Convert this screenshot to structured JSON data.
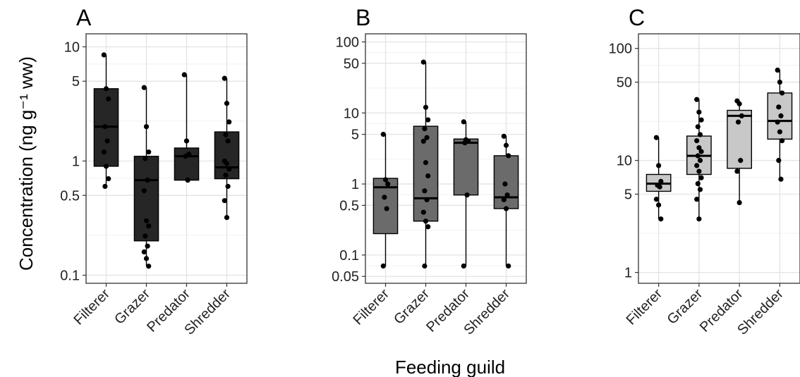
{
  "figure": {
    "ylabel": "Concentration (ng g⁻¹ ww)",
    "xlabel": "Feeding guild"
  },
  "chart_data": [
    {
      "type": "box",
      "panel": "A",
      "categories": [
        "Filterer",
        "Grazer",
        "Predator",
        "Shredder"
      ],
      "yticks": [
        0.1,
        0.5,
        1,
        5,
        10
      ],
      "yticklabels": [
        "0.1",
        "0.5",
        "1",
        "5",
        "10"
      ],
      "ylim": [
        0.085,
        13
      ],
      "fill": "#262626",
      "boxes": [
        {
          "category": "Filterer",
          "whisker_low": 0.6,
          "q1": 0.9,
          "median": 2.0,
          "q3": 4.3,
          "whisker_high": 8.5,
          "points": [
            8.5,
            4.3,
            3.5,
            2.0,
            1.5,
            1.2,
            0.9,
            0.7,
            0.6
          ]
        },
        {
          "category": "Grazer",
          "whisker_low": 0.12,
          "q1": 0.2,
          "median": 0.68,
          "q3": 1.1,
          "whisker_high": 4.4,
          "points": [
            4.4,
            2.0,
            1.2,
            1.05,
            0.68,
            0.55,
            0.3,
            0.27,
            0.22,
            0.18,
            0.16,
            0.14,
            0.12
          ]
        },
        {
          "category": "Predator",
          "whisker_low": 0.68,
          "q1": 0.68,
          "median": 1.1,
          "q3": 1.3,
          "whisker_high": 5.7,
          "points": [
            5.7,
            1.5,
            1.15,
            1.1,
            0.68
          ]
        },
        {
          "category": "Shredder",
          "whisker_low": 0.32,
          "q1": 0.7,
          "median": 0.88,
          "q3": 1.8,
          "whisker_high": 5.3,
          "points": [
            5.3,
            3.2,
            2.2,
            1.7,
            1.5,
            1.0,
            0.95,
            0.85,
            0.75,
            0.6,
            0.45,
            0.32
          ]
        }
      ]
    },
    {
      "type": "box",
      "panel": "B",
      "categories": [
        "Filterer",
        "Grazer",
        "Predator",
        "Shredder"
      ],
      "yticks": [
        0.05,
        0.1,
        0.5,
        1,
        5,
        10,
        50,
        100
      ],
      "yticklabels": [
        "0.05",
        "0.1",
        "0.5",
        "1",
        "5",
        "10",
        "50",
        "100"
      ],
      "ylim": [
        0.04,
        130
      ],
      "fill": "#6b6b6b",
      "boxes": [
        {
          "category": "Filterer",
          "whisker_low": 0.07,
          "q1": 0.2,
          "median": 0.9,
          "q3": 1.2,
          "whisker_high": 5.0,
          "points": [
            5.0,
            1.15,
            1.0,
            0.65,
            0.45,
            0.07
          ]
        },
        {
          "category": "Grazer",
          "whisker_low": 0.07,
          "q1": 0.3,
          "median": 0.63,
          "q3": 6.5,
          "whisker_high": 52,
          "points": [
            52,
            12,
            8,
            6,
            4.5,
            4.0,
            2.0,
            1.3,
            0.8,
            0.6,
            0.4,
            0.3,
            0.25,
            0.07
          ]
        },
        {
          "category": "Predator",
          "whisker_low": 0.07,
          "q1": 0.7,
          "median": 3.8,
          "q3": 4.3,
          "whisker_high": 7.5,
          "points": [
            7.5,
            4.2,
            4.0,
            3.8,
            0.7,
            0.07
          ]
        },
        {
          "category": "Shredder",
          "whisker_low": 0.07,
          "q1": 0.45,
          "median": 0.65,
          "q3": 2.5,
          "whisker_high": 4.7,
          "points": [
            4.7,
            3.5,
            2.5,
            1.0,
            0.7,
            0.6,
            0.45,
            0.07
          ]
        }
      ]
    },
    {
      "type": "box",
      "panel": "C",
      "categories": [
        "Filterer",
        "Grazer",
        "Predator",
        "Shredder"
      ],
      "yticks": [
        1,
        5,
        10,
        50,
        100
      ],
      "yticklabels": [
        "1",
        "5",
        "10",
        "50",
        "100"
      ],
      "ylim": [
        0.8,
        135
      ],
      "fill": "#c8c8c8",
      "boxes": [
        {
          "category": "Filterer",
          "whisker_low": 3.0,
          "q1": 5.3,
          "median": 6.2,
          "q3": 7.5,
          "whisker_high": 16,
          "points": [
            16,
            9,
            6.5,
            6.0,
            5.8,
            4.5,
            4.0,
            3.0
          ]
        },
        {
          "category": "Grazer",
          "whisker_low": 3.0,
          "q1": 7.5,
          "median": 11.0,
          "q3": 16.5,
          "whisker_high": 35,
          "points": [
            35,
            27,
            23,
            20,
            17,
            15,
            13,
            12,
            11,
            10,
            9,
            8,
            7,
            6.2,
            5.5,
            4.5,
            3.0
          ]
        },
        {
          "category": "Predator",
          "whisker_low": 4.2,
          "q1": 8.5,
          "median": 25,
          "q3": 28,
          "whisker_high": 34,
          "points": [
            34,
            32,
            25,
            22,
            10,
            8,
            4.2
          ]
        },
        {
          "category": "Shredder",
          "whisker_low": 6.8,
          "q1": 15.5,
          "median": 22.5,
          "q3": 40,
          "whisker_high": 64,
          "points": [
            64,
            50,
            40,
            30,
            25,
            22,
            18,
            15,
            10,
            6.8
          ]
        }
      ]
    }
  ]
}
